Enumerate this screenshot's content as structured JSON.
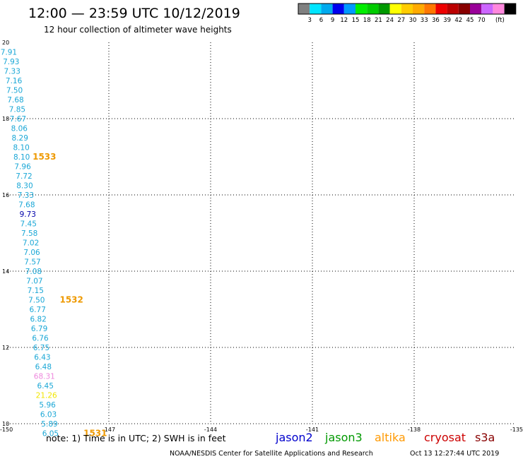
{
  "header": {
    "title": "12:00 — 23:59 UTC 10/12/2019",
    "subtitle": "12 hour collection of altimeter wave heights"
  },
  "colorbar": {
    "colors": [
      "#808080",
      "#00e5ff",
      "#00aaee",
      "#0000ee",
      "#0099ff",
      "#00ee00",
      "#00cc00",
      "#009900",
      "#ffff00",
      "#ffcc00",
      "#ffaa00",
      "#ff7700",
      "#ee0000",
      "#bb0000",
      "#880000",
      "#990099",
      "#cc66ff",
      "#ff88dd",
      "#000000"
    ],
    "labels": [
      "3",
      "6",
      "9",
      "12",
      "15",
      "18",
      "21",
      "24",
      "27",
      "30",
      "33",
      "36",
      "39",
      "42",
      "45",
      "70",
      "(ft)"
    ]
  },
  "chart_data": {
    "type": "scatter",
    "xlim": [
      -150,
      -135
    ],
    "ylim": [
      10,
      20
    ],
    "x_ticks": [
      "-150",
      "-147",
      "-144",
      "-141",
      "-138",
      "-135"
    ],
    "y_ticks": [
      "10",
      "12",
      "14",
      "16",
      "18",
      "20"
    ],
    "grid": true,
    "points": [
      {
        "lon": -149.95,
        "lat": 19.75,
        "label": "7.91",
        "color": "#1aa7d6"
      },
      {
        "lon": -149.88,
        "lat": 19.5,
        "label": "7.93",
        "color": "#1aa7d6"
      },
      {
        "lon": -149.85,
        "lat": 19.25,
        "label": "7.33",
        "color": "#1aa7d6"
      },
      {
        "lon": -149.8,
        "lat": 19.0,
        "label": "7.16",
        "color": "#1aa7d6"
      },
      {
        "lon": -149.78,
        "lat": 18.75,
        "label": "7.50",
        "color": "#1aa7d6"
      },
      {
        "lon": -149.75,
        "lat": 18.5,
        "label": "7.68",
        "color": "#1aa7d6"
      },
      {
        "lon": -149.7,
        "lat": 18.25,
        "label": "7.85",
        "color": "#1aa7d6"
      },
      {
        "lon": -149.68,
        "lat": 18.0,
        "label": "7.67",
        "color": "#1aa7d6"
      },
      {
        "lon": -149.64,
        "lat": 17.75,
        "label": "8.06",
        "color": "#1aa7d6"
      },
      {
        "lon": -149.62,
        "lat": 17.5,
        "label": "8.29",
        "color": "#1aa7d6"
      },
      {
        "lon": -149.58,
        "lat": 17.25,
        "label": "8.10",
        "color": "#1aa7d6"
      },
      {
        "lon": -149.57,
        "lat": 17.0,
        "label": "8.10",
        "color": "#1aa7d6"
      },
      {
        "lon": -149.54,
        "lat": 16.75,
        "label": "7.96",
        "color": "#1aa7d6"
      },
      {
        "lon": -149.5,
        "lat": 16.5,
        "label": "7.72",
        "color": "#1aa7d6"
      },
      {
        "lon": -149.48,
        "lat": 16.25,
        "label": "8.30",
        "color": "#1aa7d6"
      },
      {
        "lon": -149.45,
        "lat": 16.0,
        "label": "7.33",
        "color": "#1aa7d6"
      },
      {
        "lon": -149.42,
        "lat": 15.75,
        "label": "7.68",
        "color": "#1aa7d6"
      },
      {
        "lon": -149.39,
        "lat": 15.5,
        "label": "9.73",
        "color": "#0000aa"
      },
      {
        "lon": -149.37,
        "lat": 15.25,
        "label": "7.45",
        "color": "#1aa7d6"
      },
      {
        "lon": -149.34,
        "lat": 15.0,
        "label": "7.58",
        "color": "#1aa7d6"
      },
      {
        "lon": -149.3,
        "lat": 14.75,
        "label": "7.02",
        "color": "#1aa7d6"
      },
      {
        "lon": -149.27,
        "lat": 14.5,
        "label": "7.06",
        "color": "#1aa7d6"
      },
      {
        "lon": -149.25,
        "lat": 14.25,
        "label": "7.57",
        "color": "#1aa7d6"
      },
      {
        "lon": -149.22,
        "lat": 14.0,
        "label": "7.08",
        "color": "#1aa7d6"
      },
      {
        "lon": -149.19,
        "lat": 13.75,
        "label": "7.07",
        "color": "#1aa7d6"
      },
      {
        "lon": -149.16,
        "lat": 13.5,
        "label": "7.15",
        "color": "#1aa7d6"
      },
      {
        "lon": -149.13,
        "lat": 13.25,
        "label": "7.50",
        "color": "#1aa7d6"
      },
      {
        "lon": -149.1,
        "lat": 13.0,
        "label": "6.77",
        "color": "#1aa7d6"
      },
      {
        "lon": -149.08,
        "lat": 12.75,
        "label": "6.82",
        "color": "#1aa7d6"
      },
      {
        "lon": -149.05,
        "lat": 12.5,
        "label": "6.79",
        "color": "#1aa7d6"
      },
      {
        "lon": -149.02,
        "lat": 12.25,
        "label": "6.76",
        "color": "#1aa7d6"
      },
      {
        "lon": -148.99,
        "lat": 12.0,
        "label": "6.75",
        "color": "#1aa7d6"
      },
      {
        "lon": -148.96,
        "lat": 11.75,
        "label": "6.43",
        "color": "#1aa7d6"
      },
      {
        "lon": -148.93,
        "lat": 11.5,
        "label": "6.48",
        "color": "#1aa7d6"
      },
      {
        "lon": -148.9,
        "lat": 11.25,
        "label": "68.31",
        "color": "#ee88dd"
      },
      {
        "lon": -148.87,
        "lat": 11.0,
        "label": "6.45",
        "color": "#1aa7d6"
      },
      {
        "lon": -148.84,
        "lat": 10.75,
        "label": "21.26",
        "color": "#f2e600"
      },
      {
        "lon": -148.81,
        "lat": 10.5,
        "label": "5.96",
        "color": "#1aa7d6"
      },
      {
        "lon": -148.78,
        "lat": 10.25,
        "label": "6.03",
        "color": "#1aa7d6"
      },
      {
        "lon": -148.75,
        "lat": 10.0,
        "label": "5.89",
        "color": "#1aa7d6"
      },
      {
        "lon": -148.72,
        "lat": 9.75,
        "label": "6.05",
        "color": "#1aa7d6"
      }
    ],
    "time_labels": [
      {
        "lon": -148.9,
        "lat": 17.0,
        "label": "1533",
        "color": "#ee9900"
      },
      {
        "lon": -148.1,
        "lat": 13.25,
        "label": "1532",
        "color": "#ee9900"
      },
      {
        "lon": -147.4,
        "lat": 9.75,
        "label": "1531",
        "color": "#ee9900"
      }
    ]
  },
  "footer": {
    "note": "note:  1) Time is in UTC;  2) SWH is in feet",
    "legend": [
      {
        "name": "jason2",
        "color": "#0000cc"
      },
      {
        "name": "jason3",
        "color": "#009900"
      },
      {
        "name": "altika",
        "color": "#ff9900"
      },
      {
        "name": "cryosat",
        "color": "#cc0000"
      },
      {
        "name": "s3a",
        "color": "#880000"
      }
    ],
    "credit": "NOAA/NESDIS Center for Satellite Applications and Research",
    "timestamp": "Oct 13 12:27:44 UTC 2019"
  }
}
